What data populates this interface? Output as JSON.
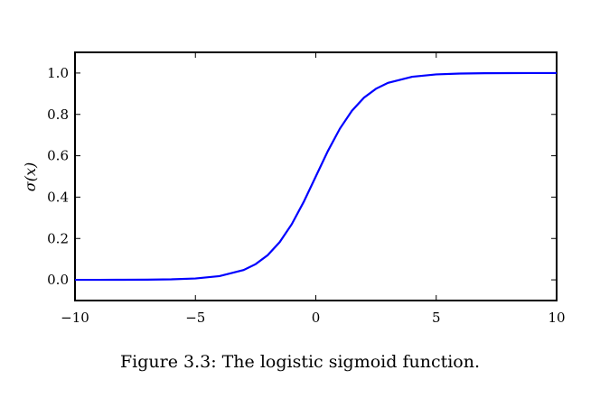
{
  "caption": "Figure 3.3: The logistic sigmoid function.",
  "chart_data": {
    "type": "line",
    "function": "logistic sigmoid",
    "ylabel": "σ(x)",
    "xlabel": "",
    "title": "",
    "xlim": [
      -10,
      10
    ],
    "ylim": [
      -0.1,
      1.1
    ],
    "xticks": [
      -10,
      -5,
      0,
      5,
      10
    ],
    "xtick_labels": [
      "−10",
      "−5",
      "0",
      "5",
      "10"
    ],
    "yticks": [
      0.0,
      0.2,
      0.4,
      0.6,
      0.8,
      1.0
    ],
    "ytick_labels": [
      "0.0",
      "0.2",
      "0.4",
      "0.6",
      "0.8",
      "1.0"
    ],
    "grid": false,
    "line_color": "#0000ff",
    "series": [
      {
        "x": [
          -10,
          -9,
          -8,
          -7,
          -6,
          -5,
          -4,
          -3,
          -2.5,
          -2,
          -1.5,
          -1,
          -0.5,
          0,
          0.5,
          1,
          1.5,
          2,
          2.5,
          3,
          4,
          5,
          6,
          7,
          8,
          9,
          10
        ],
        "y": [
          4.54e-05,
          0.000123,
          0.000335,
          0.000911,
          0.00247,
          0.00669,
          0.018,
          0.0474,
          0.0759,
          0.1192,
          0.1824,
          0.2689,
          0.3775,
          0.5,
          0.6225,
          0.7311,
          0.8176,
          0.8808,
          0.9241,
          0.9526,
          0.982,
          0.9933,
          0.9975,
          0.9991,
          0.9997,
          0.9999,
          0.99995
        ]
      }
    ]
  }
}
